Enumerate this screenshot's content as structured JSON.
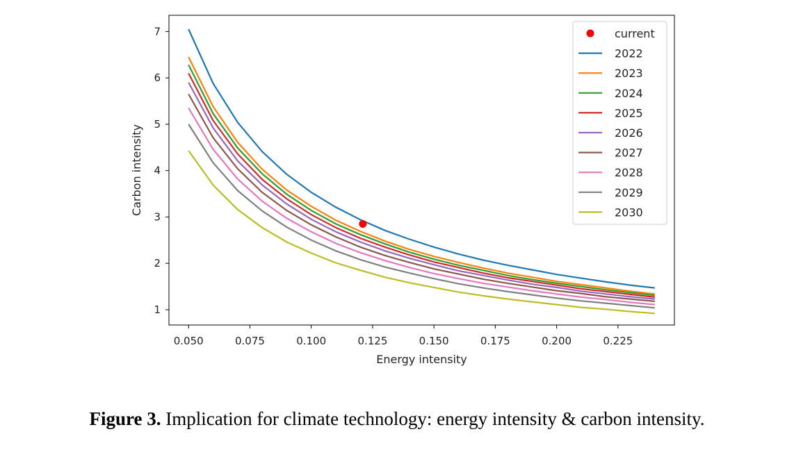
{
  "caption": {
    "label": "Figure 3.",
    "text": " Implication for climate technology: energy intensity & carbon intensity."
  },
  "chart_data": {
    "type": "line",
    "title": "",
    "xlabel": "Energy intensity",
    "ylabel": "Carbon intensity",
    "xlim": [
      0.042,
      0.248
    ],
    "ylim": [
      0.67,
      7.35
    ],
    "xticks": [
      0.05,
      0.075,
      0.1,
      0.125,
      0.15,
      0.175,
      0.2,
      0.225
    ],
    "xtick_labels": [
      "0.050",
      "0.075",
      "0.100",
      "0.125",
      "0.150",
      "0.175",
      "0.200",
      "0.225"
    ],
    "yticks": [
      1,
      2,
      3,
      4,
      5,
      6,
      7
    ],
    "ytick_labels": [
      "1",
      "2",
      "3",
      "4",
      "5",
      "6",
      "7"
    ],
    "grid": false,
    "legend": "top-right",
    "x": [
      0.05,
      0.06,
      0.07,
      0.08,
      0.09,
      0.1,
      0.11,
      0.12,
      0.13,
      0.14,
      0.15,
      0.16,
      0.17,
      0.18,
      0.19,
      0.2,
      0.21,
      0.22,
      0.23,
      0.24
    ],
    "series": [
      {
        "name": "2022",
        "color": "#1f77b4",
        "values": [
          7.05,
          5.88,
          5.04,
          4.41,
          3.92,
          3.53,
          3.21,
          2.94,
          2.71,
          2.52,
          2.35,
          2.2,
          2.07,
          1.96,
          1.86,
          1.76,
          1.68,
          1.6,
          1.53,
          1.47
        ]
      },
      {
        "name": "2023",
        "color": "#ff7f0e",
        "values": [
          6.45,
          5.38,
          4.61,
          4.03,
          3.58,
          3.23,
          2.93,
          2.69,
          2.48,
          2.3,
          2.15,
          2.02,
          1.9,
          1.79,
          1.7,
          1.61,
          1.54,
          1.47,
          1.4,
          1.34
        ]
      },
      {
        "name": "2024",
        "color": "#2ca02c",
        "values": [
          6.28,
          5.23,
          4.49,
          3.93,
          3.49,
          3.14,
          2.85,
          2.62,
          2.42,
          2.24,
          2.09,
          1.96,
          1.85,
          1.74,
          1.65,
          1.57,
          1.5,
          1.43,
          1.37,
          1.31
        ]
      },
      {
        "name": "2025",
        "color": "#d62728",
        "values": [
          6.1,
          5.08,
          4.36,
          3.81,
          3.39,
          3.05,
          2.77,
          2.54,
          2.35,
          2.18,
          2.03,
          1.91,
          1.79,
          1.69,
          1.61,
          1.53,
          1.45,
          1.39,
          1.33,
          1.27
        ]
      },
      {
        "name": "2026",
        "color": "#9467bd",
        "values": [
          5.9,
          4.92,
          4.21,
          3.69,
          3.28,
          2.95,
          2.68,
          2.46,
          2.27,
          2.11,
          1.97,
          1.84,
          1.74,
          1.64,
          1.55,
          1.48,
          1.4,
          1.34,
          1.28,
          1.23
        ]
      },
      {
        "name": "2027",
        "color": "#8c564b",
        "values": [
          5.65,
          4.71,
          4.04,
          3.53,
          3.14,
          2.83,
          2.57,
          2.35,
          2.17,
          2.02,
          1.88,
          1.77,
          1.66,
          1.57,
          1.49,
          1.41,
          1.35,
          1.28,
          1.23,
          1.18
        ]
      },
      {
        "name": "2028",
        "color": "#e377c2",
        "values": [
          5.35,
          4.46,
          3.82,
          3.34,
          2.97,
          2.68,
          2.43,
          2.23,
          2.06,
          1.91,
          1.78,
          1.67,
          1.57,
          1.49,
          1.41,
          1.34,
          1.27,
          1.22,
          1.16,
          1.11
        ]
      },
      {
        "name": "2029",
        "color": "#7f7f7f",
        "values": [
          5.0,
          4.17,
          3.57,
          3.13,
          2.78,
          2.5,
          2.27,
          2.08,
          1.92,
          1.79,
          1.67,
          1.56,
          1.47,
          1.39,
          1.32,
          1.25,
          1.19,
          1.14,
          1.09,
          1.04
        ]
      },
      {
        "name": "2030",
        "color": "#bcbd22",
        "values": [
          4.43,
          3.69,
          3.16,
          2.77,
          2.46,
          2.22,
          2.01,
          1.85,
          1.7,
          1.58,
          1.48,
          1.38,
          1.3,
          1.23,
          1.17,
          1.11,
          1.05,
          1.01,
          0.96,
          0.92
        ]
      }
    ],
    "points": [
      {
        "name": "current",
        "color": "#ff0000",
        "x": 0.121,
        "y": 2.85
      }
    ]
  }
}
